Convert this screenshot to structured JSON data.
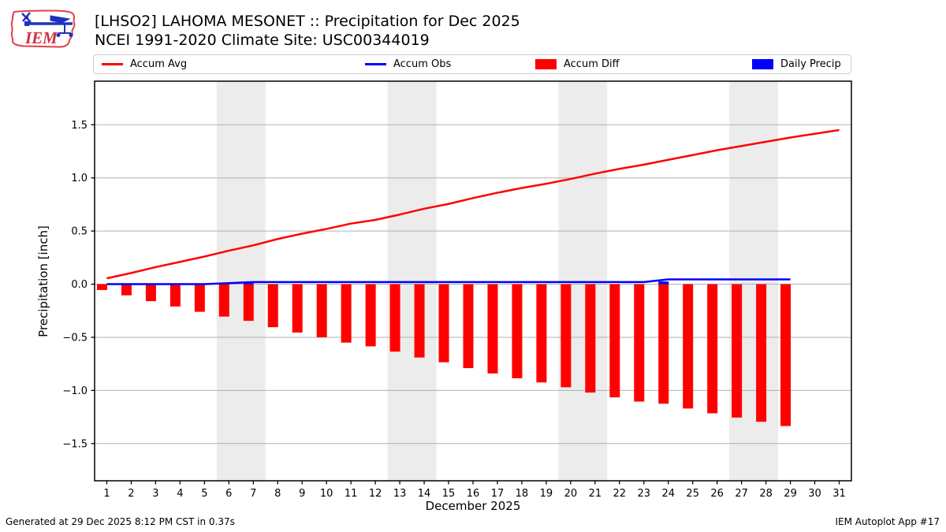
{
  "header": {
    "title": "[LHSO2] LAHOMA MESONET :: Precipitation for Dec 2025",
    "subtitle": "NCEI 1991-2020 Climate Site: USC00344019",
    "logo_text": "IEM"
  },
  "legend": {
    "items": [
      {
        "label": "Accum Avg",
        "type": "line",
        "color": "#ff0000"
      },
      {
        "label": "Accum Obs",
        "type": "line",
        "color": "#0000ff"
      },
      {
        "label": "Accum Diff",
        "type": "patch",
        "color": "#ff0000"
      },
      {
        "label": "Daily Precip",
        "type": "patch",
        "color": "#0000ff"
      }
    ]
  },
  "footer": {
    "left": "Generated at 29 Dec 2025 8:12 PM CST in 0.37s",
    "right": "IEM Autoplot App #17"
  },
  "chart_data": {
    "type": "bar+line",
    "xlabel": "December 2025",
    "ylabel": "Precipitation [inch]",
    "xlim": [
      0.5,
      31.5
    ],
    "ylim": [
      -1.85,
      1.91
    ],
    "x_ticks": [
      1,
      2,
      3,
      4,
      5,
      6,
      7,
      8,
      9,
      10,
      11,
      12,
      13,
      14,
      15,
      16,
      17,
      18,
      19,
      20,
      21,
      22,
      23,
      24,
      25,
      26,
      27,
      28,
      29,
      30,
      31
    ],
    "y_ticks": [
      -1.5,
      -1.0,
      -0.5,
      0.0,
      0.5,
      1.0,
      1.5
    ],
    "grid": "horizontal",
    "legend_position": "top",
    "weekend_bands": [
      [
        5.5,
        7.5
      ],
      [
        12.5,
        14.5
      ],
      [
        19.5,
        21.5
      ],
      [
        26.5,
        28.5
      ]
    ],
    "band_color": "#ececec",
    "grid_color": "#b0b0b0",
    "series": [
      {
        "name": "Accum Avg",
        "type": "line",
        "color": "#ff0000",
        "x": [
          1,
          2,
          3,
          4,
          5,
          6,
          7,
          8,
          9,
          10,
          11,
          12,
          13,
          14,
          15,
          16,
          17,
          18,
          19,
          20,
          21,
          22,
          23,
          24,
          25,
          26,
          27,
          28,
          29,
          30,
          31
        ],
        "values": [
          0.055,
          0.105,
          0.16,
          0.21,
          0.26,
          0.315,
          0.365,
          0.425,
          0.475,
          0.52,
          0.57,
          0.605,
          0.655,
          0.71,
          0.755,
          0.81,
          0.86,
          0.905,
          0.945,
          0.99,
          1.04,
          1.085,
          1.125,
          1.17,
          1.215,
          1.26,
          1.3,
          1.34,
          1.38,
          1.415,
          1.45
        ]
      },
      {
        "name": "Accum Obs",
        "type": "line",
        "color": "#0000ff",
        "x": [
          1,
          2,
          3,
          4,
          5,
          6,
          7,
          8,
          9,
          10,
          11,
          12,
          13,
          14,
          15,
          16,
          17,
          18,
          19,
          20,
          21,
          22,
          23,
          24,
          25,
          26,
          27,
          28,
          29
        ],
        "values": [
          0,
          0,
          0,
          0,
          0,
          0.01,
          0.02,
          0.02,
          0.02,
          0.02,
          0.02,
          0.02,
          0.02,
          0.02,
          0.02,
          0.02,
          0.02,
          0.02,
          0.02,
          0.02,
          0.02,
          0.02,
          0.02,
          0.045,
          0.045,
          0.045,
          0.045,
          0.045,
          0.045
        ]
      },
      {
        "name": "Accum Diff",
        "type": "bar",
        "color": "#ff0000",
        "x": [
          1,
          2,
          3,
          4,
          5,
          6,
          7,
          8,
          9,
          10,
          11,
          12,
          13,
          14,
          15,
          16,
          17,
          18,
          19,
          20,
          21,
          22,
          23,
          24,
          25,
          26,
          27,
          28,
          29
        ],
        "values": [
          -0.055,
          -0.105,
          -0.16,
          -0.21,
          -0.26,
          -0.305,
          -0.345,
          -0.405,
          -0.455,
          -0.5,
          -0.55,
          -0.585,
          -0.635,
          -0.69,
          -0.735,
          -0.79,
          -0.84,
          -0.885,
          -0.925,
          -0.97,
          -1.02,
          -1.065,
          -1.105,
          -1.125,
          -1.17,
          -1.215,
          -1.255,
          -1.295,
          -1.335
        ]
      },
      {
        "name": "Daily Precip",
        "type": "bar",
        "color": "#0000ff",
        "x": [
          1,
          2,
          3,
          4,
          5,
          6,
          7,
          8,
          9,
          10,
          11,
          12,
          13,
          14,
          15,
          16,
          17,
          18,
          19,
          20,
          21,
          22,
          23,
          24,
          25,
          26,
          27,
          28,
          29
        ],
        "values": [
          0,
          0,
          0,
          0,
          0,
          0.01,
          0.01,
          0,
          0,
          0,
          0,
          0,
          0,
          0,
          0,
          0,
          0,
          0,
          0,
          0,
          0,
          0,
          0,
          0.025,
          0,
          0,
          0,
          0,
          0
        ]
      }
    ]
  }
}
